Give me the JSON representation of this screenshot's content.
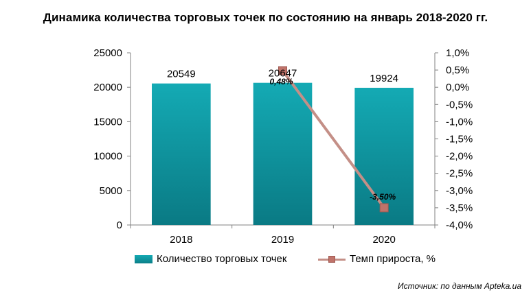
{
  "chart_data": {
    "type": "bar",
    "title": "Динамика количества торговых точек по состоянию на январь 2018-2020 гг.",
    "categories": [
      "2018",
      "2019",
      "2020"
    ],
    "series": [
      {
        "name": "Количество  торговых точек",
        "type": "bar",
        "axis": "left",
        "values": [
          20549,
          20647,
          19924
        ],
        "labels": [
          "20549",
          "20647",
          "19924"
        ],
        "color": "#0f98a2"
      },
      {
        "name": "Темп прироста, %",
        "type": "line",
        "axis": "right",
        "values": [
          null,
          0.48,
          -3.5
        ],
        "labels": [
          "",
          "0,48%",
          "-3,50%"
        ],
        "color": "#c48f87",
        "marker_color": "#c0736a"
      }
    ],
    "left_axis": {
      "ylim": [
        0,
        25000
      ],
      "ticks": [
        0,
        5000,
        10000,
        15000,
        20000,
        25000
      ],
      "tick_labels": [
        "0",
        "5000",
        "10000",
        "15000",
        "20000",
        "25000"
      ]
    },
    "right_axis": {
      "ylim": [
        -4.0,
        1.0
      ],
      "ticks": [
        1.0,
        0.5,
        0.0,
        -0.5,
        -1.0,
        -1.5,
        -2.0,
        -2.5,
        -3.0,
        -3.5,
        -4.0
      ],
      "tick_labels": [
        "1,0%",
        "0,5%",
        "0,0%",
        "-0,5%",
        "-1,0%",
        "-1,5%",
        "-2,0%",
        "-2,5%",
        "-3,0%",
        "-3,5%",
        "-4,0%"
      ]
    },
    "grid": false,
    "legend_position": "bottom"
  },
  "source": "Источник: по данным Apteka.ua"
}
